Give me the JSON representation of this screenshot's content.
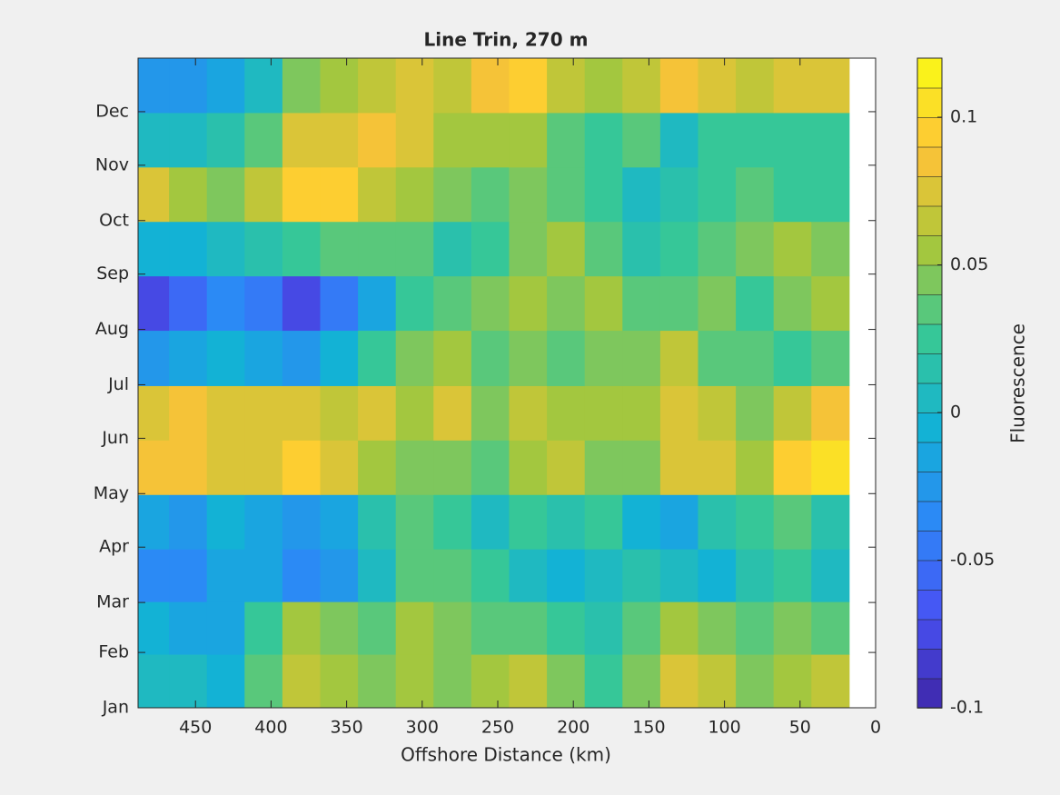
{
  "chart_data": {
    "type": "contour",
    "title": "Line Trin, 270 m",
    "xlabel": "Offshore Distance (km)",
    "x": [
      480,
      455,
      430,
      405,
      380,
      355,
      330,
      305,
      280,
      255,
      230,
      205,
      180,
      155,
      130,
      105,
      80,
      55,
      30
    ],
    "y": [
      16,
      46,
      75,
      105,
      136,
      166,
      197,
      228,
      258,
      289,
      319,
      350
    ],
    "z": [
      [
        0.0,
        0.0,
        -0.01,
        0.03,
        0.06,
        0.05,
        0.04,
        0.05,
        0.04,
        0.05,
        0.06,
        0.04,
        0.02,
        0.04,
        0.07,
        0.06,
        0.04,
        0.05,
        0.06
      ],
      [
        -0.01,
        -0.02,
        -0.02,
        0.02,
        0.05,
        0.04,
        0.03,
        0.05,
        0.04,
        0.03,
        0.03,
        0.02,
        0.01,
        0.03,
        0.05,
        0.04,
        0.03,
        0.04,
        0.03
      ],
      [
        -0.04,
        -0.04,
        -0.02,
        -0.02,
        -0.04,
        -0.03,
        0.0,
        0.03,
        0.03,
        0.02,
        0.0,
        -0.01,
        0.0,
        0.01,
        0.0,
        -0.01,
        0.01,
        0.02,
        0.0
      ],
      [
        -0.02,
        -0.03,
        -0.01,
        -0.02,
        -0.03,
        -0.02,
        0.01,
        0.03,
        0.02,
        0.0,
        0.02,
        0.01,
        0.02,
        -0.01,
        -0.02,
        0.01,
        0.02,
        0.03,
        0.01
      ],
      [
        0.08,
        0.08,
        0.07,
        0.07,
        0.09,
        0.07,
        0.05,
        0.04,
        0.04,
        0.03,
        0.05,
        0.06,
        0.04,
        0.04,
        0.07,
        0.07,
        0.05,
        0.09,
        0.1
      ],
      [
        0.07,
        0.08,
        0.07,
        0.07,
        0.07,
        0.06,
        0.07,
        0.05,
        0.07,
        0.04,
        0.06,
        0.05,
        0.05,
        0.05,
        0.07,
        0.06,
        0.04,
        0.06,
        0.08
      ],
      [
        -0.03,
        -0.02,
        -0.01,
        -0.02,
        -0.03,
        -0.01,
        0.02,
        0.04,
        0.05,
        0.03,
        0.04,
        0.03,
        0.04,
        0.04,
        0.06,
        0.03,
        0.03,
        0.02,
        0.03
      ],
      [
        -0.08,
        -0.06,
        -0.04,
        -0.05,
        -0.08,
        -0.05,
        -0.02,
        0.02,
        0.03,
        0.04,
        0.05,
        0.04,
        0.05,
        0.03,
        0.03,
        0.04,
        0.02,
        0.04,
        0.05
      ],
      [
        -0.01,
        -0.01,
        0.0,
        0.01,
        0.02,
        0.03,
        0.03,
        0.03,
        0.01,
        0.02,
        0.04,
        0.05,
        0.03,
        0.01,
        0.02,
        0.03,
        0.04,
        0.05,
        0.04
      ],
      [
        0.07,
        0.05,
        0.04,
        0.06,
        0.09,
        0.09,
        0.06,
        0.05,
        0.04,
        0.03,
        0.04,
        0.03,
        0.02,
        0.0,
        0.01,
        0.02,
        0.03,
        0.02,
        0.02
      ],
      [
        0.0,
        0.0,
        0.01,
        0.03,
        0.07,
        0.07,
        0.08,
        0.07,
        0.05,
        0.05,
        0.05,
        0.03,
        0.02,
        0.03,
        0.0,
        0.02,
        0.02,
        0.02,
        0.02
      ],
      [
        -0.03,
        -0.03,
        -0.02,
        0.0,
        0.04,
        0.05,
        0.06,
        0.07,
        0.06,
        0.08,
        0.09,
        0.06,
        0.05,
        0.06,
        0.08,
        0.07,
        0.06,
        0.07,
        0.07
      ]
    ],
    "xlim": [
      488,
      0
    ],
    "xticks": [
      450,
      400,
      350,
      300,
      250,
      200,
      150,
      100,
      50,
      0
    ],
    "ylim": [
      1,
      365
    ],
    "yticks": [
      {
        "value": 1,
        "label": "Jan"
      },
      {
        "value": 32,
        "label": "Feb"
      },
      {
        "value": 60,
        "label": "Mar"
      },
      {
        "value": 91,
        "label": "Apr"
      },
      {
        "value": 121,
        "label": "May"
      },
      {
        "value": 152,
        "label": "Jun"
      },
      {
        "value": 182,
        "label": "Jul"
      },
      {
        "value": 213,
        "label": "Aug"
      },
      {
        "value": 244,
        "label": "Sep"
      },
      {
        "value": 274,
        "label": "Oct"
      },
      {
        "value": 305,
        "label": "Nov"
      },
      {
        "value": 335,
        "label": "Dec"
      }
    ],
    "colormap": [
      "#3e26a8",
      "#4852f4",
      "#2d87f7",
      "#12b1d6",
      "#37c897",
      "#abc739",
      "#fec338",
      "#f9fb15"
    ],
    "colorbar": {
      "label": "Fluorescence",
      "lim": [
        -0.1,
        0.12
      ],
      "ticks": [
        -0.1,
        -0.05,
        0,
        0.05,
        0.1
      ],
      "level_step": 0.01
    }
  }
}
